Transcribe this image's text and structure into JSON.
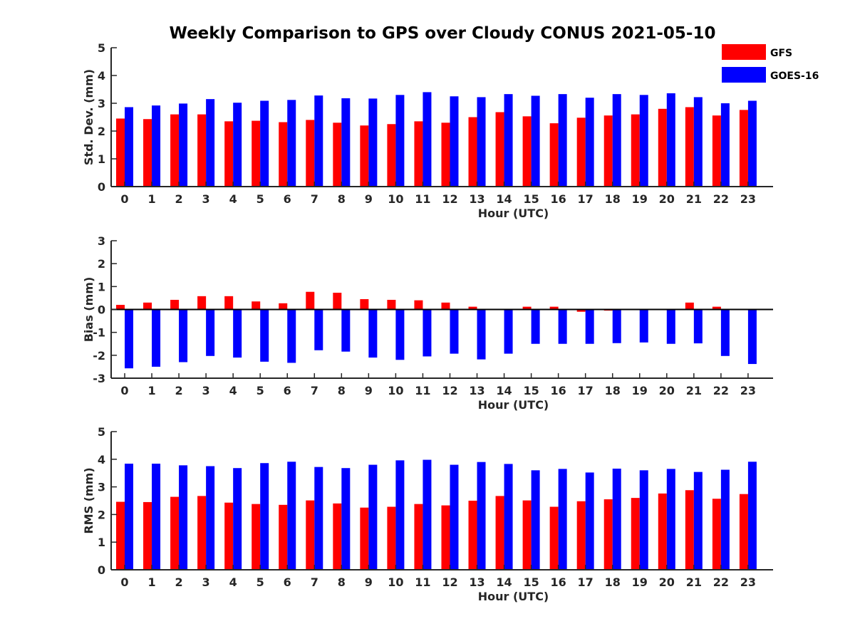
{
  "figure": {
    "title": "Weekly Comparison to GPS over Cloudy CONUS 2021-05-10"
  },
  "legend": {
    "placement": "top-right",
    "entries": [
      {
        "label": "GFS",
        "color": "#ff0000"
      },
      {
        "label": "GOES-16",
        "color": "#0000ff"
      }
    ]
  },
  "chart_data": [
    {
      "type": "bar",
      "xlabel": "Hour (UTC)",
      "ylabel": "Std. Dev. (mm)",
      "ylim": [
        0,
        5
      ],
      "yticks": [
        0,
        1,
        2,
        3,
        4,
        5
      ],
      "categories": [
        "0",
        "1",
        "2",
        "3",
        "4",
        "5",
        "6",
        "7",
        "8",
        "9",
        "10",
        "11",
        "12",
        "13",
        "14",
        "15",
        "16",
        "17",
        "18",
        "19",
        "20",
        "21",
        "22",
        "23"
      ],
      "series": [
        {
          "name": "GFS",
          "color": "#ff0000",
          "values": [
            2.45,
            2.43,
            2.6,
            2.6,
            2.35,
            2.37,
            2.32,
            2.4,
            2.3,
            2.2,
            2.25,
            2.35,
            2.3,
            2.5,
            2.68,
            2.53,
            2.28,
            2.48,
            2.56,
            2.6,
            2.8,
            2.86,
            2.56,
            2.76
          ]
        },
        {
          "name": "GOES-16",
          "color": "#0000ff",
          "values": [
            2.86,
            2.92,
            2.99,
            3.15,
            3.02,
            3.09,
            3.12,
            3.28,
            3.18,
            3.17,
            3.3,
            3.4,
            3.25,
            3.22,
            3.33,
            3.27,
            3.33,
            3.2,
            3.33,
            3.3,
            3.36,
            3.22,
            3.0,
            3.09
          ]
        }
      ]
    },
    {
      "type": "bar",
      "xlabel": "Hour (UTC)",
      "ylabel": "Bias (mm)",
      "ylim": [
        -3,
        3
      ],
      "yticks": [
        -3,
        -2,
        -1,
        0,
        1,
        2,
        3
      ],
      "zero_line": true,
      "categories": [
        "0",
        "1",
        "2",
        "3",
        "4",
        "5",
        "6",
        "7",
        "8",
        "9",
        "10",
        "11",
        "12",
        "13",
        "14",
        "15",
        "16",
        "17",
        "18",
        "19",
        "20",
        "21",
        "22",
        "23"
      ],
      "series": [
        {
          "name": "GFS",
          "color": "#ff0000",
          "values": [
            0.2,
            0.3,
            0.42,
            0.58,
            0.58,
            0.35,
            0.27,
            0.77,
            0.73,
            0.45,
            0.42,
            0.4,
            0.3,
            0.12,
            0.0,
            0.12,
            0.12,
            -0.1,
            -0.05,
            0.0,
            0.03,
            0.3,
            0.12,
            -0.02
          ]
        },
        {
          "name": "GOES-16",
          "color": "#0000ff",
          "values": [
            -2.57,
            -2.5,
            -2.3,
            -2.03,
            -2.1,
            -2.28,
            -2.33,
            -1.78,
            -1.84,
            -2.1,
            -2.2,
            -2.05,
            -1.93,
            -2.18,
            -1.93,
            -1.5,
            -1.5,
            -1.5,
            -1.47,
            -1.44,
            -1.5,
            -1.48,
            -2.03,
            -2.38
          ]
        }
      ]
    },
    {
      "type": "bar",
      "xlabel": "Hour (UTC)",
      "ylabel": "RMS (mm)",
      "ylim": [
        0,
        5
      ],
      "yticks": [
        0,
        1,
        2,
        3,
        4,
        5
      ],
      "categories": [
        "0",
        "1",
        "2",
        "3",
        "4",
        "5",
        "6",
        "7",
        "8",
        "9",
        "10",
        "11",
        "12",
        "13",
        "14",
        "15",
        "16",
        "17",
        "18",
        "19",
        "20",
        "21",
        "22",
        "23"
      ],
      "series": [
        {
          "name": "GFS",
          "color": "#ff0000",
          "values": [
            2.46,
            2.45,
            2.64,
            2.67,
            2.43,
            2.38,
            2.35,
            2.51,
            2.4,
            2.25,
            2.28,
            2.38,
            2.33,
            2.5,
            2.67,
            2.51,
            2.28,
            2.48,
            2.55,
            2.6,
            2.76,
            2.88,
            2.57,
            2.74
          ]
        },
        {
          "name": "GOES-16",
          "color": "#0000ff",
          "values": [
            3.84,
            3.84,
            3.78,
            3.75,
            3.68,
            3.86,
            3.91,
            3.72,
            3.68,
            3.8,
            3.96,
            3.98,
            3.8,
            3.9,
            3.83,
            3.6,
            3.65,
            3.52,
            3.66,
            3.6,
            3.65,
            3.54,
            3.62,
            3.91
          ]
        }
      ]
    }
  ]
}
